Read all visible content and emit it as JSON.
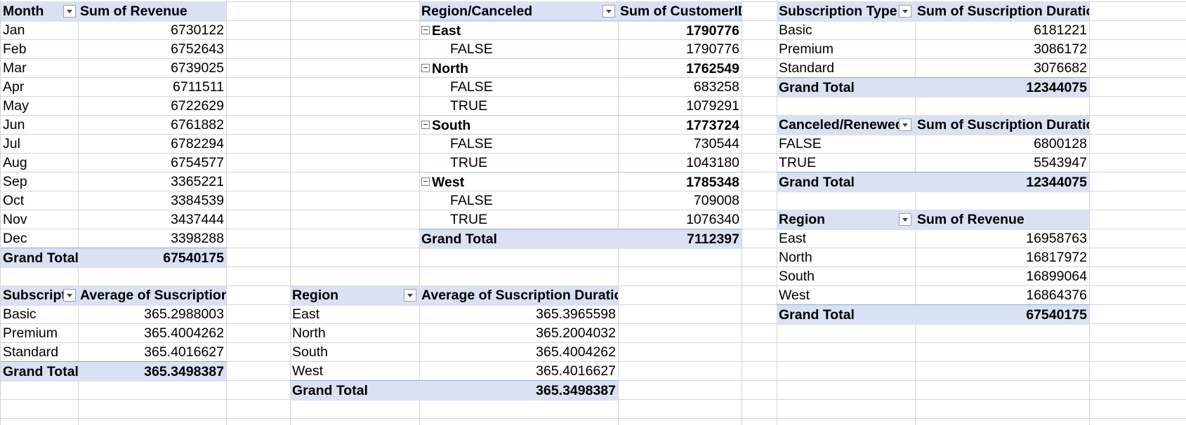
{
  "pivot_month": {
    "header_label": "Month",
    "value_header": "Sum of Revenue",
    "rows": [
      {
        "label": "Jan",
        "value": "6730122"
      },
      {
        "label": "Feb",
        "value": "6752643"
      },
      {
        "label": "Mar",
        "value": "6739025"
      },
      {
        "label": "Apr",
        "value": "6711511"
      },
      {
        "label": "May",
        "value": "6722629"
      },
      {
        "label": "Jun",
        "value": "6761882"
      },
      {
        "label": "Jul",
        "value": "6782294"
      },
      {
        "label": "Aug",
        "value": "6754577"
      },
      {
        "label": "Sep",
        "value": "3365221"
      },
      {
        "label": "Oct",
        "value": "3384539"
      },
      {
        "label": "Nov",
        "value": "3437444"
      },
      {
        "label": "Dec",
        "value": "3398288"
      }
    ],
    "total_label": "Grand Total",
    "total_value": "67540175"
  },
  "pivot_region_canceled": {
    "header_label": "Region/Canceled",
    "value_header": "Sum of CustomerID",
    "rows": [
      {
        "label": "East",
        "value": "1790776",
        "group": true
      },
      {
        "label": "FALSE",
        "value": "1790776"
      },
      {
        "label": "North",
        "value": "1762549",
        "group": true
      },
      {
        "label": "FALSE",
        "value": "683258"
      },
      {
        "label": "TRUE",
        "value": "1079291"
      },
      {
        "label": "South",
        "value": "1773724",
        "group": true
      },
      {
        "label": "FALSE",
        "value": "730544"
      },
      {
        "label": "TRUE",
        "value": "1043180"
      },
      {
        "label": "West",
        "value": "1785348",
        "group": true
      },
      {
        "label": "FALSE",
        "value": "709008"
      },
      {
        "label": "TRUE",
        "value": "1076340"
      }
    ],
    "total_label": "Grand Total",
    "total_value": "7112397"
  },
  "pivot_subscription_type": {
    "header_label": "Subscription Type",
    "value_header": "Sum of Suscription Duration",
    "rows": [
      {
        "label": "Basic",
        "value": "6181221"
      },
      {
        "label": "Premium",
        "value": "3086172"
      },
      {
        "label": "Standard",
        "value": "3076682"
      }
    ],
    "total_label": "Grand Total",
    "total_value": "12344075"
  },
  "pivot_canceled_renewed": {
    "header_label": "Canceled/Renewed",
    "value_header": "Sum of Suscription Duration",
    "rows": [
      {
        "label": "FALSE",
        "value": "6800128"
      },
      {
        "label": "TRUE",
        "value": "5543947"
      }
    ],
    "total_label": "Grand Total",
    "total_value": "12344075"
  },
  "pivot_region_revenue": {
    "header_label": "Region",
    "value_header": "Sum of Revenue",
    "rows": [
      {
        "label": "East",
        "value": "16958763"
      },
      {
        "label": "North",
        "value": "16817972"
      },
      {
        "label": "South",
        "value": "16899064"
      },
      {
        "label": "West",
        "value": "16864376"
      }
    ],
    "total_label": "Grand Total",
    "total_value": "67540175"
  },
  "pivot_subscription_avg": {
    "header_label": "Subscripti",
    "value_header": "Average of Suscription Duration",
    "rows": [
      {
        "label": "Basic",
        "value": "365.2988003"
      },
      {
        "label": "Premium",
        "value": "365.4004262"
      },
      {
        "label": "Standard",
        "value": "365.4016627"
      }
    ],
    "total_label": "Grand Total",
    "total_value": "365.3498387"
  },
  "pivot_region_avg": {
    "header_label": "Region",
    "value_header": "Average of Suscription Duration",
    "rows": [
      {
        "label": "East",
        "value": "365.3965598"
      },
      {
        "label": "North",
        "value": "365.2004032"
      },
      {
        "label": "South",
        "value": "365.4004262"
      },
      {
        "label": "West",
        "value": "365.4016627"
      }
    ],
    "total_label": "Grand Total",
    "total_value": "365.3498387"
  },
  "colors": {
    "header_fill": "#d9e1f2",
    "header_border": "#8ea9db",
    "gridline": "#d4d4d4"
  },
  "icons": {
    "filter_dropdown": "filter-dropdown-icon",
    "collapse": "collapse-minus-icon"
  }
}
